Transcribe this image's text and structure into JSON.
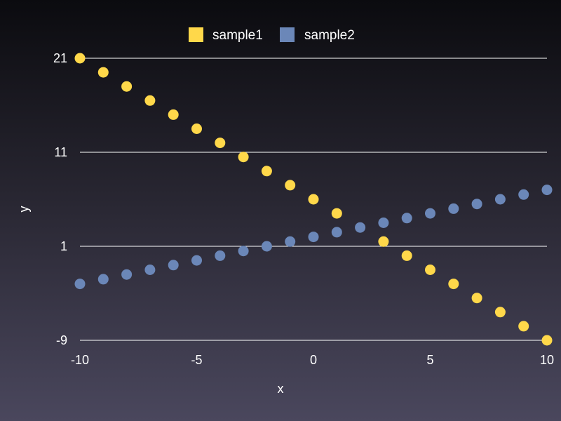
{
  "chart_data": {
    "type": "scatter",
    "title": "",
    "xlabel": "x",
    "ylabel": "y",
    "xlim": [
      -10,
      10
    ],
    "ylim": [
      -9,
      21
    ],
    "x_ticks": [
      -10,
      -5,
      0,
      5,
      10
    ],
    "y_ticks": [
      -9,
      1,
      11,
      21
    ],
    "grid": "horizontal",
    "legend_position": "top-center",
    "series": [
      {
        "name": "sample1",
        "color": "#ffd84a",
        "x": [
          -10,
          -9,
          -8,
          -7,
          -6,
          -5,
          -4,
          -3,
          -2,
          -1,
          0,
          1,
          2,
          3,
          4,
          5,
          6,
          7,
          8,
          9,
          10
        ],
        "y": [
          21,
          19.5,
          18,
          16.5,
          15,
          13.5,
          12,
          10.5,
          9,
          7.5,
          6,
          4.5,
          null,
          1.5,
          0,
          -1.5,
          -3,
          -4.5,
          -6,
          -7.5,
          -9
        ]
      },
      {
        "name": "sample2",
        "color": "#6b87b8",
        "x": [
          -10,
          -9,
          -8,
          -7,
          -6,
          -5,
          -4,
          -3,
          -2,
          -1,
          0,
          1,
          2,
          3,
          4,
          5,
          6,
          7,
          8,
          9,
          10
        ],
        "y": [
          -3,
          -2.5,
          -2,
          -1.5,
          -1,
          -0.5,
          0,
          0.5,
          1,
          1.5,
          2,
          2.5,
          3,
          3.5,
          4,
          4.5,
          5,
          5.5,
          6,
          6.5,
          7
        ]
      }
    ]
  }
}
